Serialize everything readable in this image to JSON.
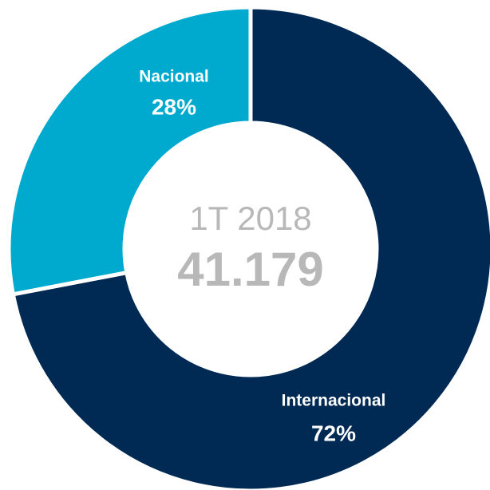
{
  "chart_data": {
    "type": "donut",
    "categories": [
      "Internacional",
      "Nacional"
    ],
    "values": [
      72,
      28
    ],
    "value_labels": [
      "72%",
      "28%"
    ],
    "colors": [
      "#002a54",
      "#00a9ce"
    ],
    "center_subtitle": "1T 2018",
    "center_value": "41.179"
  }
}
